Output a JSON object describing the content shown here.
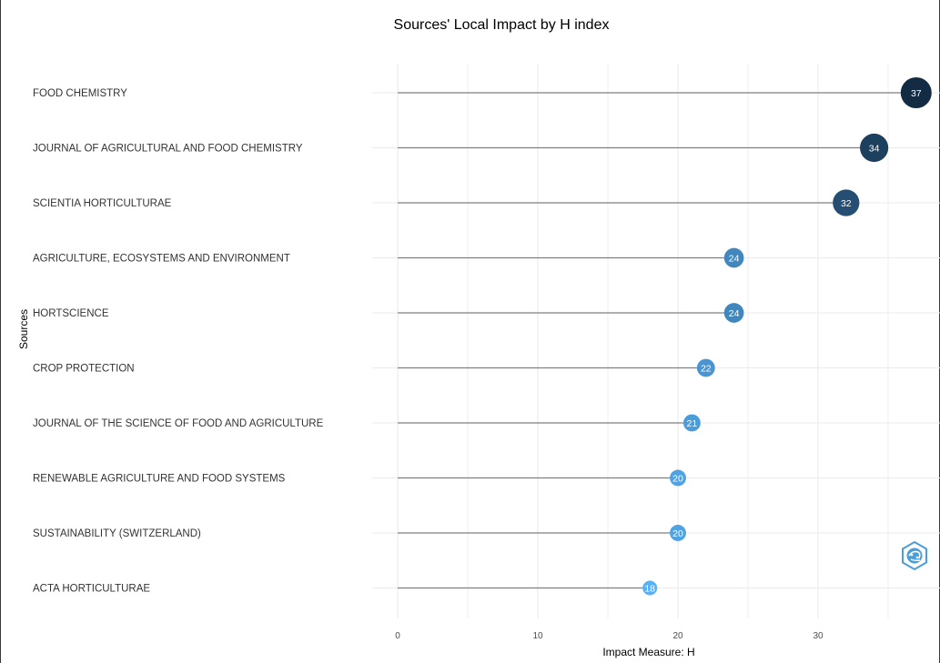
{
  "chart_data": {
    "type": "lollipop",
    "title": "Sources' Local Impact by H index",
    "xlabel": "Impact Measure: H",
    "ylabel": "Sources",
    "xlim": [
      0,
      38
    ],
    "xticks": [
      0,
      10,
      20,
      30
    ],
    "grid": true,
    "categories": [
      "FOOD CHEMISTRY",
      "JOURNAL OF AGRICULTURAL AND FOOD CHEMISTRY",
      "SCIENTIA HORTICULTURAE",
      "AGRICULTURE, ECOSYSTEMS AND ENVIRONMENT",
      "HORTSCIENCE",
      "CROP PROTECTION",
      "JOURNAL OF THE SCIENCE OF FOOD AND AGRICULTURE",
      "RENEWABLE AGRICULTURE AND FOOD SYSTEMS",
      "SUSTAINABILITY (SWITZERLAND)",
      "ACTA HORTICULTURAE"
    ],
    "values": [
      37,
      34,
      32,
      24,
      24,
      22,
      21,
      20,
      20,
      18
    ],
    "colors": {
      "high": "#132b43",
      "low": "#56b1f7",
      "stem": "#7f7f7f",
      "grid": "#ebebeb"
    }
  },
  "watermark_icon": "bibliometrix-logo-icon"
}
